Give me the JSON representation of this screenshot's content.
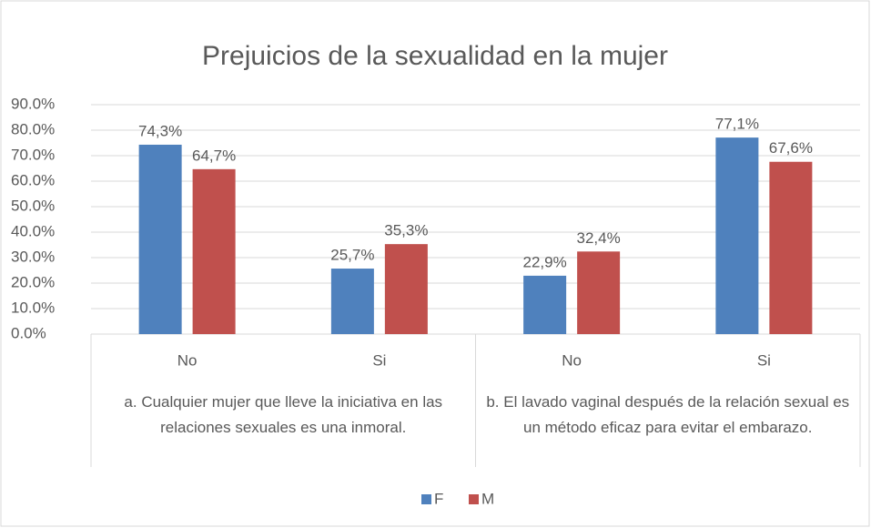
{
  "chart_data": {
    "type": "bar",
    "title": "Prejuicios de la sexualidad en la mujer",
    "categories": [
      "No",
      "Si",
      "No",
      "Si"
    ],
    "groups": [
      "a.    Cualquier mujer que lleve la iniciativa en las relaciones sexuales es una inmoral.",
      "b.    El lavado vaginal después de la relación sexual es un método eficaz para evitar el embarazo."
    ],
    "series": [
      {
        "name": "F",
        "color": "#4f81bd",
        "values": [
          74.3,
          25.7,
          22.9,
          77.1
        ],
        "value_labels": [
          "74,3%",
          "25,7%",
          "22,9%",
          "77,1%"
        ]
      },
      {
        "name": "M",
        "color": "#c0504d",
        "values": [
          64.7,
          35.3,
          32.4,
          67.6
        ],
        "value_labels": [
          "64,7%",
          "35,3%",
          "32,4%",
          "67,6%"
        ]
      }
    ],
    "ylim": [
      0,
      90
    ],
    "yticks": [
      {
        "value": 0,
        "label": "0.0%"
      },
      {
        "value": 10,
        "label": "10.0%"
      },
      {
        "value": 20,
        "label": "20.0%"
      },
      {
        "value": 30,
        "label": "30.0%"
      },
      {
        "value": 40,
        "label": "40.0%"
      },
      {
        "value": 50,
        "label": "50.0%"
      },
      {
        "value": 60,
        "label": "60.0%"
      },
      {
        "value": 70,
        "label": "70.0%"
      },
      {
        "value": 80,
        "label": "80.0%"
      },
      {
        "value": 90,
        "label": "90.0%"
      }
    ],
    "grid": true,
    "legend": "bottom"
  }
}
